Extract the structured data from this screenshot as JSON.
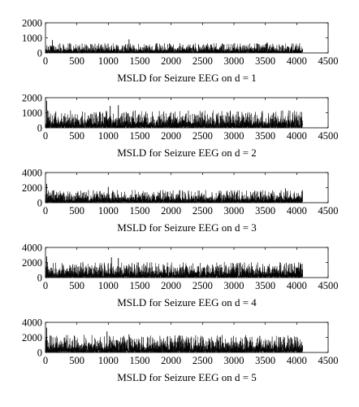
{
  "chart_data": [
    {
      "type": "line",
      "title": "",
      "xlabel": "MSLD for Seizure EEG on d = 1",
      "ylabel": "",
      "xlim": [
        0,
        4500
      ],
      "ylim": [
        0,
        2000
      ],
      "xticks": [
        "0",
        "500",
        "1000",
        "1500",
        "2000",
        "2500",
        "3000",
        "3500",
        "4000",
        "4500"
      ],
      "yticks": [
        "0",
        "1000",
        "2000"
      ],
      "n_points": 4096,
      "typical_peak": 500,
      "spikes": [
        {
          "x": 110,
          "y": 850
        },
        {
          "x": 1330,
          "y": 900
        },
        {
          "x": 3530,
          "y": 700
        }
      ],
      "grid": false
    },
    {
      "type": "line",
      "title": "",
      "xlabel": "MSLD for Seizure EEG on d = 2",
      "ylabel": "",
      "xlim": [
        0,
        4500
      ],
      "ylim": [
        0,
        2000
      ],
      "xticks": [
        "0",
        "500",
        "1000",
        "1500",
        "2000",
        "2500",
        "3000",
        "3500",
        "4000",
        "4500"
      ],
      "yticks": [
        "0",
        "1000",
        "2000"
      ],
      "n_points": 4096,
      "typical_peak": 900,
      "spikes": [
        {
          "x": 20,
          "y": 1800
        },
        {
          "x": 1030,
          "y": 1450
        },
        {
          "x": 1160,
          "y": 1500
        }
      ],
      "grid": false
    },
    {
      "type": "line",
      "title": "",
      "xlabel": "MSLD for Seizure EEG on d = 3",
      "ylabel": "",
      "xlim": [
        0,
        4500
      ],
      "ylim": [
        0,
        4000
      ],
      "xticks": [
        "0",
        "500",
        "1000",
        "1500",
        "2000",
        "2500",
        "3000",
        "3500",
        "4000",
        "4500"
      ],
      "yticks": [
        "0",
        "2000",
        "4000"
      ],
      "n_points": 4096,
      "typical_peak": 1300,
      "spikes": [
        {
          "x": 20,
          "y": 2500
        },
        {
          "x": 1000,
          "y": 2100
        },
        {
          "x": 3820,
          "y": 1900
        }
      ],
      "grid": false
    },
    {
      "type": "line",
      "title": "",
      "xlabel": "MSLD for Seizure EEG on d = 4",
      "ylabel": "",
      "xlim": [
        0,
        4500
      ],
      "ylim": [
        0,
        4000
      ],
      "xticks": [
        "0",
        "500",
        "1000",
        "1500",
        "2000",
        "2500",
        "3000",
        "3500",
        "4000",
        "4500"
      ],
      "yticks": [
        "0",
        "2000",
        "4000"
      ],
      "n_points": 4096,
      "typical_peak": 1600,
      "spikes": [
        {
          "x": 20,
          "y": 2800
        },
        {
          "x": 1050,
          "y": 2700
        },
        {
          "x": 1160,
          "y": 2600
        }
      ],
      "grid": false
    },
    {
      "type": "line",
      "title": "",
      "xlabel": "MSLD for Seizure EEG on d = 5",
      "ylabel": "",
      "xlim": [
        0,
        4500
      ],
      "ylim": [
        0,
        4000
      ],
      "xticks": [
        "0",
        "500",
        "1000",
        "1500",
        "2000",
        "2500",
        "3000",
        "3500",
        "4000",
        "4500"
      ],
      "yticks": [
        "0",
        "2000",
        "4000"
      ],
      "n_points": 4096,
      "typical_peak": 1800,
      "spikes": [
        {
          "x": 20,
          "y": 3300
        },
        {
          "x": 980,
          "y": 2800
        },
        {
          "x": 1330,
          "y": 2400
        }
      ],
      "grid": false
    }
  ],
  "colors": {
    "line": "#000000",
    "axes": "#000000",
    "background": "#ffffff"
  }
}
